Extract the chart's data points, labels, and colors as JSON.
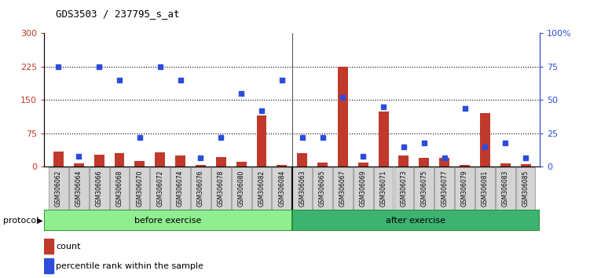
{
  "title": "GDS3503 / 237795_s_at",
  "samples": [
    "GSM306062",
    "GSM306064",
    "GSM306066",
    "GSM306068",
    "GSM306070",
    "GSM306072",
    "GSM306074",
    "GSM306076",
    "GSM306078",
    "GSM306080",
    "GSM306082",
    "GSM306084",
    "GSM306063",
    "GSM306065",
    "GSM306067",
    "GSM306069",
    "GSM306071",
    "GSM306073",
    "GSM306075",
    "GSM306077",
    "GSM306079",
    "GSM306081",
    "GSM306083",
    "GSM306085"
  ],
  "counts": [
    35,
    8,
    28,
    30,
    13,
    32,
    25,
    5,
    22,
    12,
    115,
    5,
    30,
    10,
    225,
    10,
    125,
    25,
    20,
    20,
    5,
    120,
    7,
    6
  ],
  "percentile": [
    75,
    8,
    75,
    65,
    22,
    75,
    65,
    7,
    22,
    55,
    42,
    65,
    22,
    22,
    52,
    8,
    45,
    15,
    18,
    7,
    44,
    15,
    18,
    7
  ],
  "before_exercise_count": 12,
  "after_exercise_count": 12,
  "left_ylim": [
    0,
    300
  ],
  "right_ylim": [
    0,
    100
  ],
  "left_yticks": [
    0,
    75,
    150,
    225,
    300
  ],
  "right_yticks": [
    0,
    25,
    50,
    75,
    100
  ],
  "right_yticklabels": [
    "0",
    "25",
    "50",
    "75",
    "100%"
  ],
  "bar_color": "#c0392b",
  "marker_color": "#2c4cdc",
  "before_color": "#90EE90",
  "after_color": "#3CB371",
  "protocol_label": "protocol",
  "before_label": "before exercise",
  "after_label": "after exercise",
  "legend_count": "count",
  "legend_percentile": "percentile rank within the sample",
  "bg_color": "#ffffff",
  "bar_width": 0.5
}
